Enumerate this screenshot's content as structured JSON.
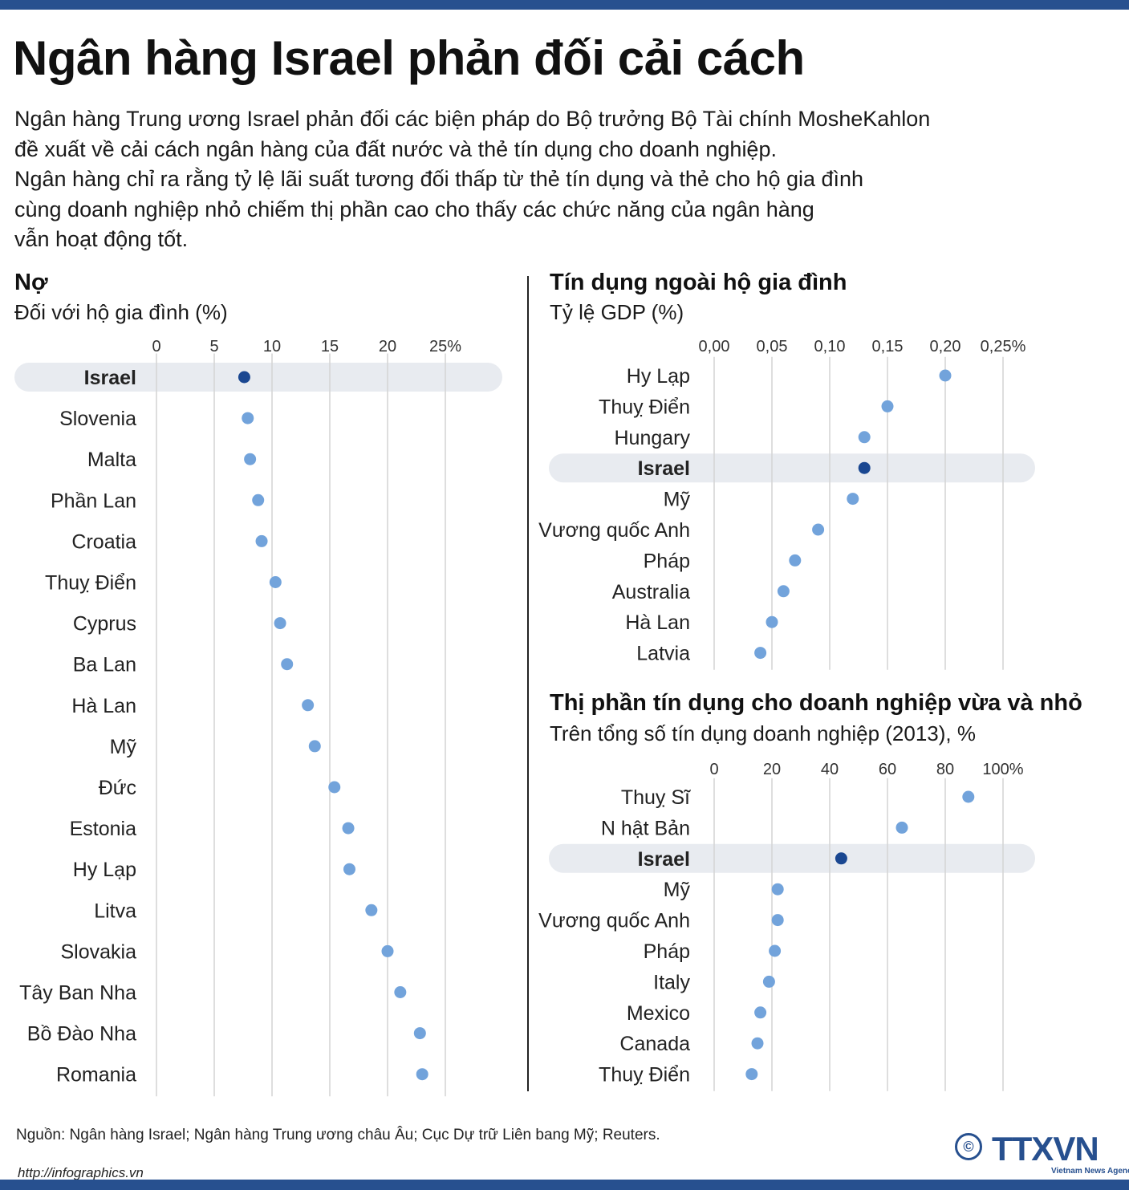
{
  "header": {
    "title": "Ngân hàng Israel phản đối cải cách",
    "intro_lines": [
      "Ngân hàng Trung ương Israel phản đối các biện pháp do Bộ trưởng Bộ Tài chính MosheKahlon",
      "đề xuất về cải cách ngân hàng của đất nước và thẻ tín dụng cho doanh nghiệp.",
      "Ngân hàng chỉ ra rằng tỷ lệ lãi suất tương đối thấp từ thẻ tín dụng và thẻ cho hộ gia đình",
      "cùng doanh nghiệp nhỏ chiếm thị phần cao cho thấy các chức năng của ngân hàng",
      "vẫn hoạt động tốt."
    ]
  },
  "colors": {
    "brand": "#27508f",
    "highlight_point": "#1a4791",
    "point": "#72a3db",
    "highlight_band": "#e8ebf0",
    "grid": "#d4d4d4"
  },
  "chart_data": [
    {
      "type": "scatter",
      "title": "Nợ",
      "subtitle": "Đối với hộ gia đình (%)",
      "xlim": [
        0,
        25
      ],
      "ticks": [
        0,
        5,
        10,
        15,
        20,
        25
      ],
      "tick_labels": [
        "0",
        "5",
        "10",
        "15",
        "20",
        "25%"
      ],
      "highlight": "Israel",
      "categories": [
        "Israel",
        "Slovenia",
        "Malta",
        "Phần Lan",
        "Croatia",
        "Thuỵ Điển",
        "Cyprus",
        "Ba Lan",
        "Hà Lan",
        "Mỹ",
        "Đức",
        "Estonia",
        "Hy Lạp",
        "Litva",
        "Slovakia",
        "Tây Ban Nha",
        "Bồ Đào Nha",
        "Romania"
      ],
      "values": [
        7.6,
        7.9,
        8.1,
        8.8,
        9.1,
        10.3,
        10.7,
        11.3,
        13.1,
        13.7,
        15.4,
        16.6,
        16.7,
        18.6,
        20.0,
        21.1,
        22.8,
        23.0
      ]
    },
    {
      "type": "scatter",
      "title": "Tín dụng ngoài hộ gia đình",
      "subtitle": "Tỷ lệ GDP (%)",
      "xlim": [
        0,
        0.25
      ],
      "ticks": [
        0,
        0.05,
        0.1,
        0.15,
        0.2,
        0.25
      ],
      "tick_labels": [
        "0,00",
        "0,05",
        "0,10",
        "0,15",
        "0,20",
        "0,25%"
      ],
      "highlight": "Israel",
      "categories": [
        "Hy Lạp",
        "Thuỵ Điển",
        "Hungary",
        "Israel",
        "Mỹ",
        "Vương quốc Anh",
        "Pháp",
        "Australia",
        "Hà Lan",
        "Latvia"
      ],
      "values": [
        0.2,
        0.15,
        0.13,
        0.13,
        0.12,
        0.09,
        0.07,
        0.06,
        0.05,
        0.04
      ]
    },
    {
      "type": "scatter",
      "title": "Thị phần tín dụng cho doanh nghiệp vừa và nhỏ",
      "subtitle": "Trên tổng số tín dụng doanh nghiệp (2013), %",
      "xlim": [
        0,
        100
      ],
      "ticks": [
        0,
        20,
        40,
        60,
        80,
        100
      ],
      "tick_labels": [
        "0",
        "20",
        "40",
        "60",
        "80",
        "100%"
      ],
      "highlight": "Israel",
      "categories": [
        "Thuỵ Sĩ",
        "N hật Bản",
        "Israel",
        "Mỹ",
        "Vương quốc Anh",
        "Pháp",
        "Italy",
        "Mexico",
        "Canada",
        "Thuỵ Điển"
      ],
      "values": [
        88,
        65,
        44,
        22,
        22,
        21,
        19,
        16,
        15,
        13
      ]
    }
  ],
  "footer": {
    "source": "Nguồn: Ngân hàng Israel; Ngân hàng Trung ương châu Âu; Cục Dự trữ Liên bang Mỹ; Reuters.",
    "url": "http://infographics.vn",
    "logo_text": "TTXVN",
    "logo_tagline": "Vietnam News Agency",
    "copyright_symbol": "©"
  }
}
